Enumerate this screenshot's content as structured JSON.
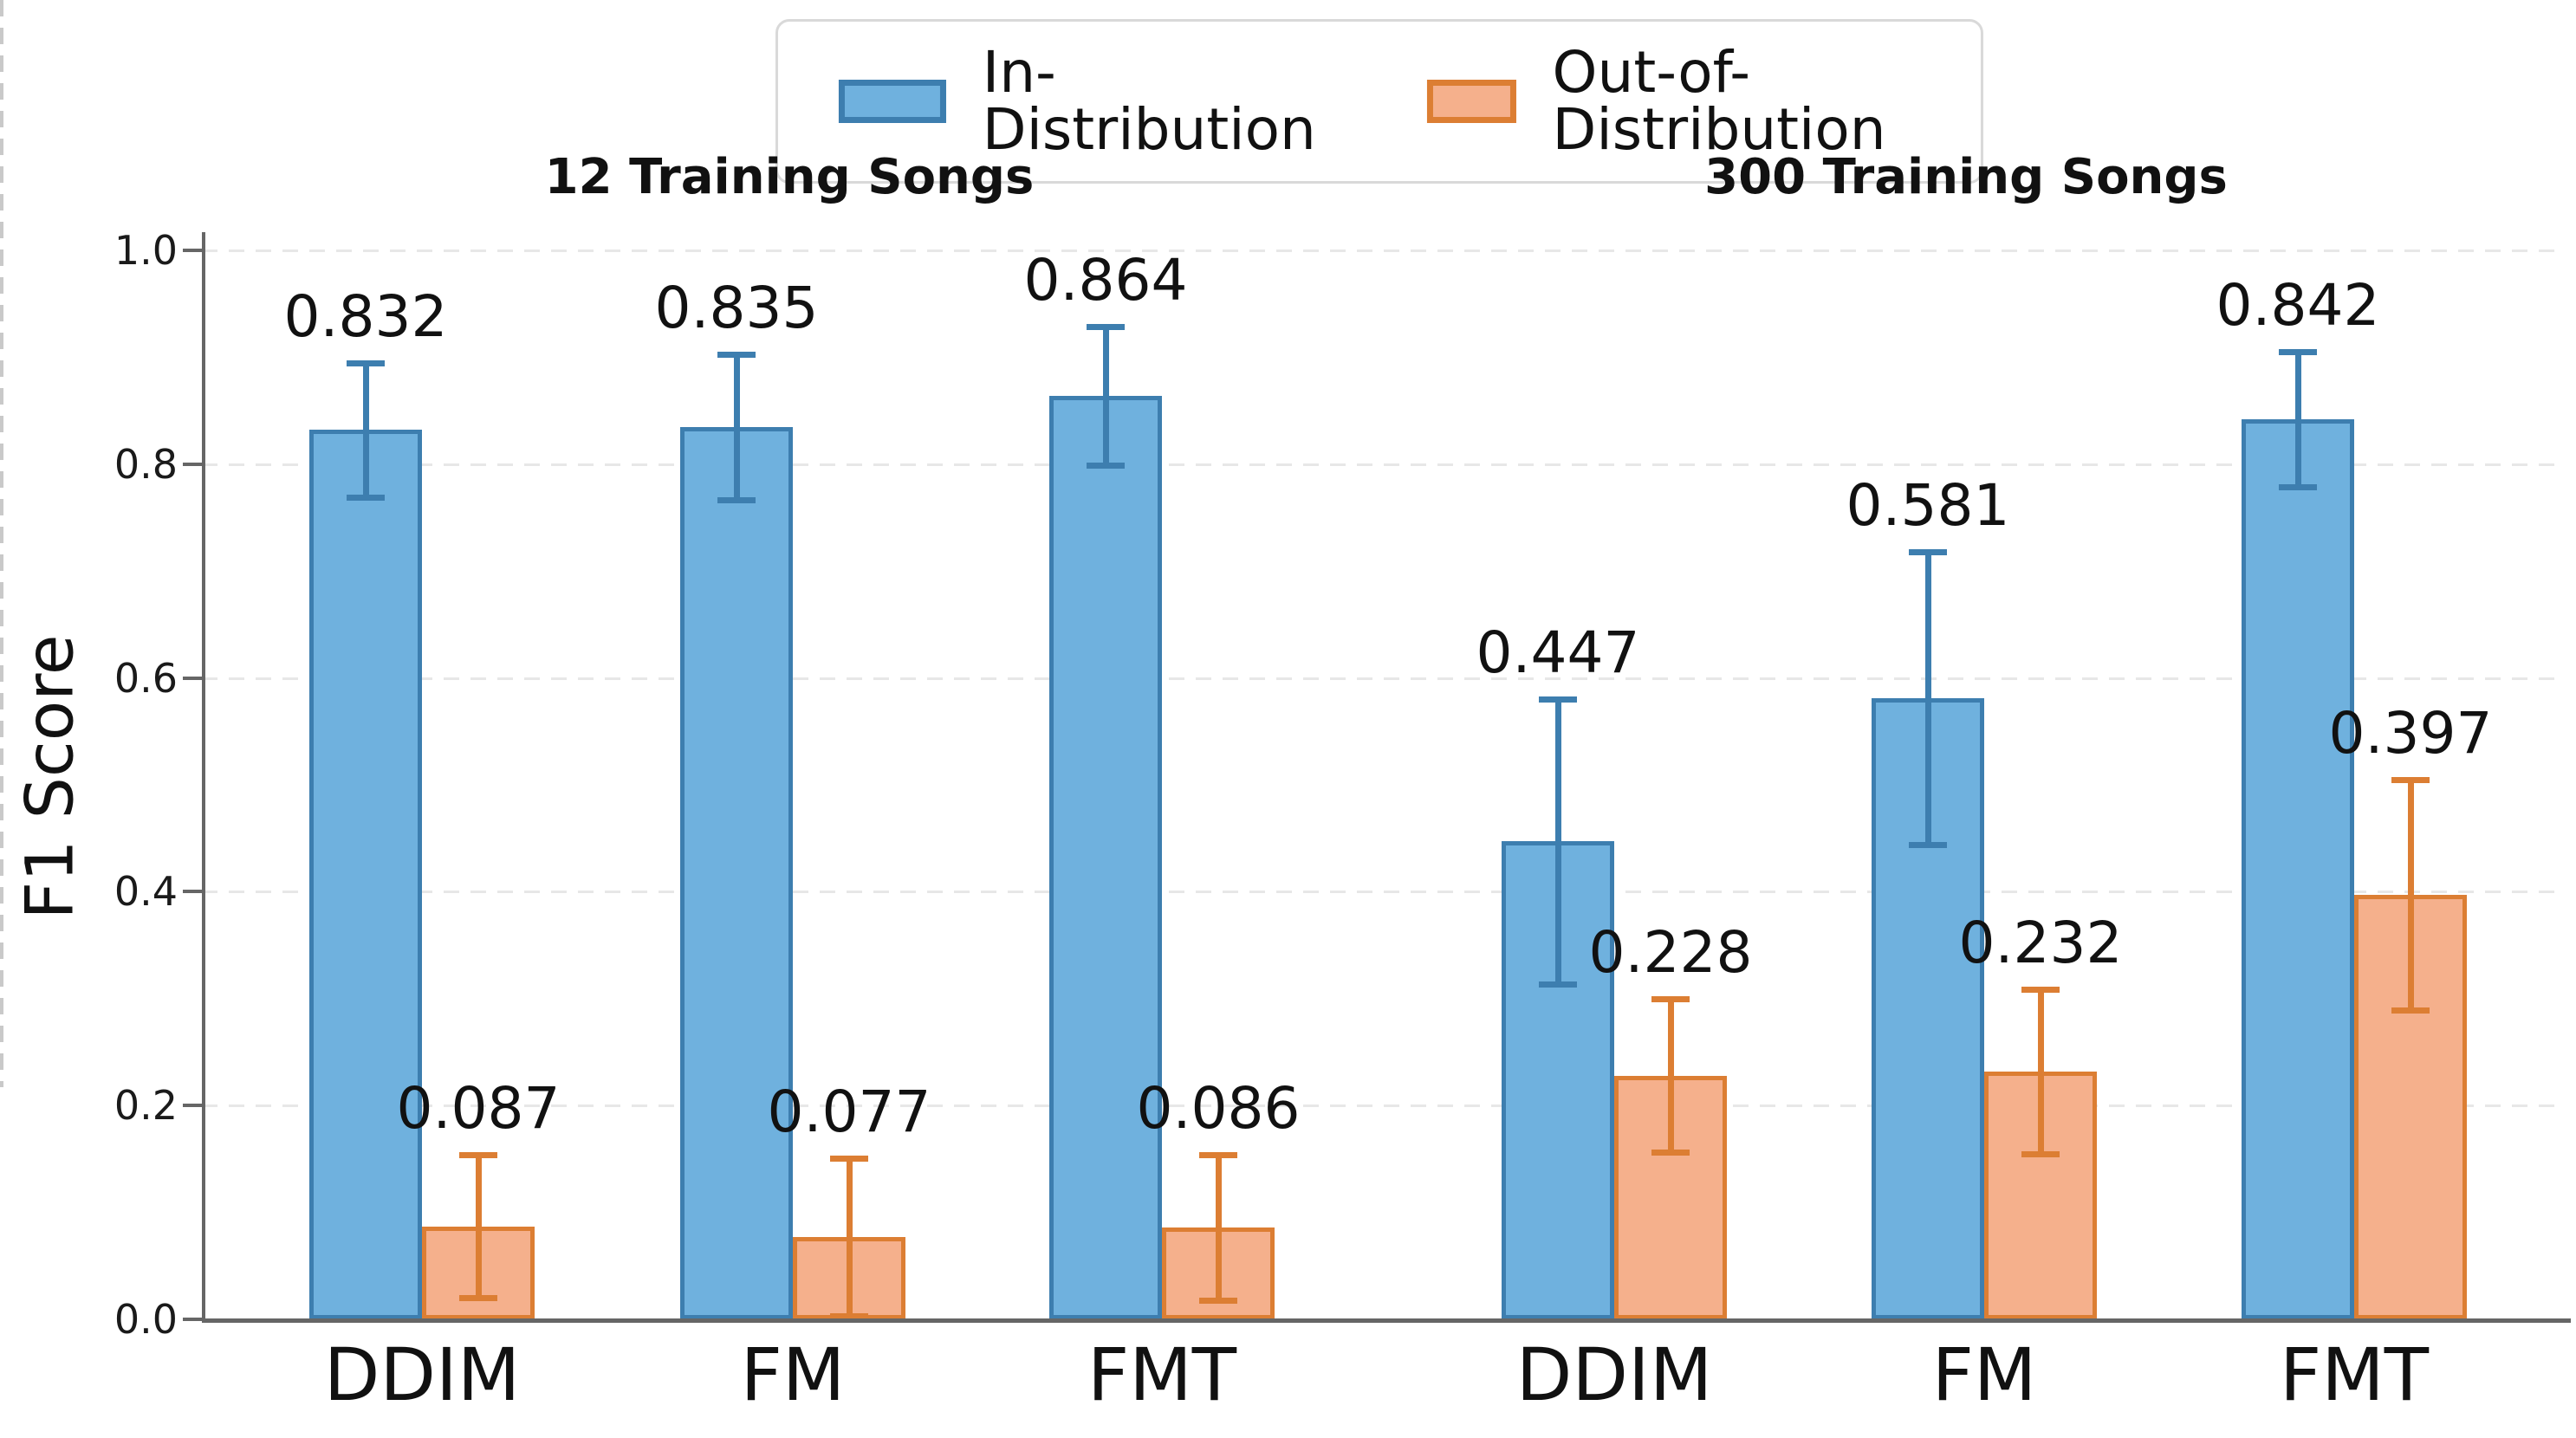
{
  "legend": {
    "items": [
      {
        "label": "In-Distribution",
        "fill": "#6FB1DE",
        "edge": "#3D7EAF"
      },
      {
        "label": "Out-of-Distribution",
        "fill": "#F5B08C",
        "edge": "#DC7E33"
      }
    ]
  },
  "chart_data": {
    "type": "bar",
    "ylabel": "F1 Score",
    "ylim": [
      0.0,
      1.0
    ],
    "yticks": [
      "0.0",
      "0.2",
      "0.4",
      "0.6",
      "0.8",
      "1.0"
    ],
    "grid": "horizontal-dashed",
    "legend_position": "top-center",
    "panel_separator": "vertical-dashed",
    "series_names": [
      "In-Distribution",
      "Out-of-Distribution"
    ],
    "panels": [
      {
        "title": "12 Training Songs",
        "categories": [
          "DDIM",
          "FM",
          "FMT"
        ],
        "series": [
          {
            "name": "In-Distribution",
            "values": [
              0.832,
              0.835,
              0.864
            ],
            "errors": [
              0.063,
              0.068,
              0.065
            ]
          },
          {
            "name": "Out-of-Distribution",
            "values": [
              0.087,
              0.077,
              0.086
            ],
            "errors": [
              0.067,
              0.074,
              0.068
            ]
          }
        ],
        "value_labels": [
          [
            "0.832",
            "0.835",
            "0.864"
          ],
          [
            "0.087",
            "0.077",
            "0.086"
          ]
        ]
      },
      {
        "title": "300 Training Songs",
        "categories": [
          "DDIM",
          "FM",
          "FMT"
        ],
        "series": [
          {
            "name": "In-Distribution",
            "values": [
              0.447,
              0.581,
              0.842
            ],
            "errors": [
              0.133,
              0.137,
              0.063
            ]
          },
          {
            "name": "Out-of-Distribution",
            "values": [
              0.228,
              0.232,
              0.397
            ],
            "errors": [
              0.072,
              0.077,
              0.108
            ]
          }
        ],
        "value_labels": [
          [
            "0.447",
            "0.581",
            "0.842"
          ],
          [
            "0.228",
            "0.232",
            "0.397"
          ]
        ]
      }
    ],
    "colors": {
      "in_fill": "#6FB1DE",
      "in_edge": "#3D7EAF",
      "out_fill": "#F5B08C",
      "out_edge": "#DC7E33",
      "axis": "#666666",
      "grid": "#e7e7e7",
      "separator": "#c9c9c9"
    }
  }
}
